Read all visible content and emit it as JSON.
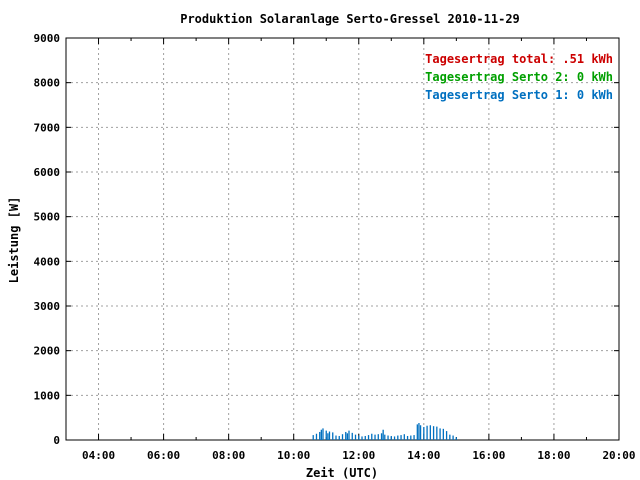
{
  "chart_data": {
    "type": "bar",
    "title": "Produktion Solaranlage Serto-Gressel 2010-11-29",
    "xlabel": "Zeit (UTC)",
    "ylabel": "Leistung [W]",
    "xlim": [
      3.0,
      20.0
    ],
    "ylim": [
      0,
      9000
    ],
    "grid": true,
    "legend_position": "top-right",
    "x_ticks": [
      {
        "value": 4,
        "label": "04:00"
      },
      {
        "value": 6,
        "label": "06:00"
      },
      {
        "value": 8,
        "label": "08:00"
      },
      {
        "value": 10,
        "label": "10:00"
      },
      {
        "value": 12,
        "label": "12:00"
      },
      {
        "value": 14,
        "label": "14:00"
      },
      {
        "value": 16,
        "label": "16:00"
      },
      {
        "value": 18,
        "label": "18:00"
      },
      {
        "value": 20,
        "label": "20:00"
      }
    ],
    "y_ticks": [
      {
        "value": 0,
        "label": "0"
      },
      {
        "value": 1000,
        "label": "1000"
      },
      {
        "value": 2000,
        "label": "2000"
      },
      {
        "value": 3000,
        "label": "3000"
      },
      {
        "value": 4000,
        "label": "4000"
      },
      {
        "value": 5000,
        "label": "5000"
      },
      {
        "value": 6000,
        "label": "6000"
      },
      {
        "value": 7000,
        "label": "7000"
      },
      {
        "value": 8000,
        "label": "8000"
      },
      {
        "value": 9000,
        "label": "9000"
      }
    ],
    "legend": [
      {
        "text": "Tagesertrag total: .51 kWh",
        "color": "#cc0000"
      },
      {
        "text": "Tagesertrag Serto 2: 0 kWh",
        "color": "#00a000"
      },
      {
        "text": "Tagesertrag Serto 1: 0 kWh",
        "color": "#0070c0"
      }
    ],
    "series": [
      {
        "color": "#0070c0",
        "x": [
          10.6,
          10.7,
          10.8,
          10.85,
          10.9,
          11.0,
          11.05,
          11.1,
          11.2,
          11.3,
          11.4,
          11.5,
          11.6,
          11.65,
          11.7,
          11.8,
          11.9,
          12.0,
          12.1,
          12.2,
          12.3,
          12.4,
          12.5,
          12.6,
          12.7,
          12.75,
          12.8,
          12.9,
          13.0,
          13.1,
          13.2,
          13.3,
          13.4,
          13.5,
          13.6,
          13.7,
          13.8,
          13.85,
          13.9,
          14.0,
          14.1,
          14.2,
          14.3,
          14.4,
          14.5,
          14.6,
          14.7,
          14.8,
          14.9,
          15.0
        ],
        "values": [
          110,
          140,
          180,
          230,
          260,
          210,
          150,
          190,
          170,
          100,
          90,
          130,
          180,
          150,
          210,
          160,
          120,
          100,
          80,
          90,
          110,
          140,
          120,
          130,
          150,
          230,
          120,
          100,
          90,
          80,
          100,
          110,
          130,
          90,
          100,
          110,
          350,
          380,
          330,
          290,
          320,
          330,
          310,
          300,
          260,
          250,
          200,
          120,
          100,
          60
        ]
      }
    ]
  }
}
